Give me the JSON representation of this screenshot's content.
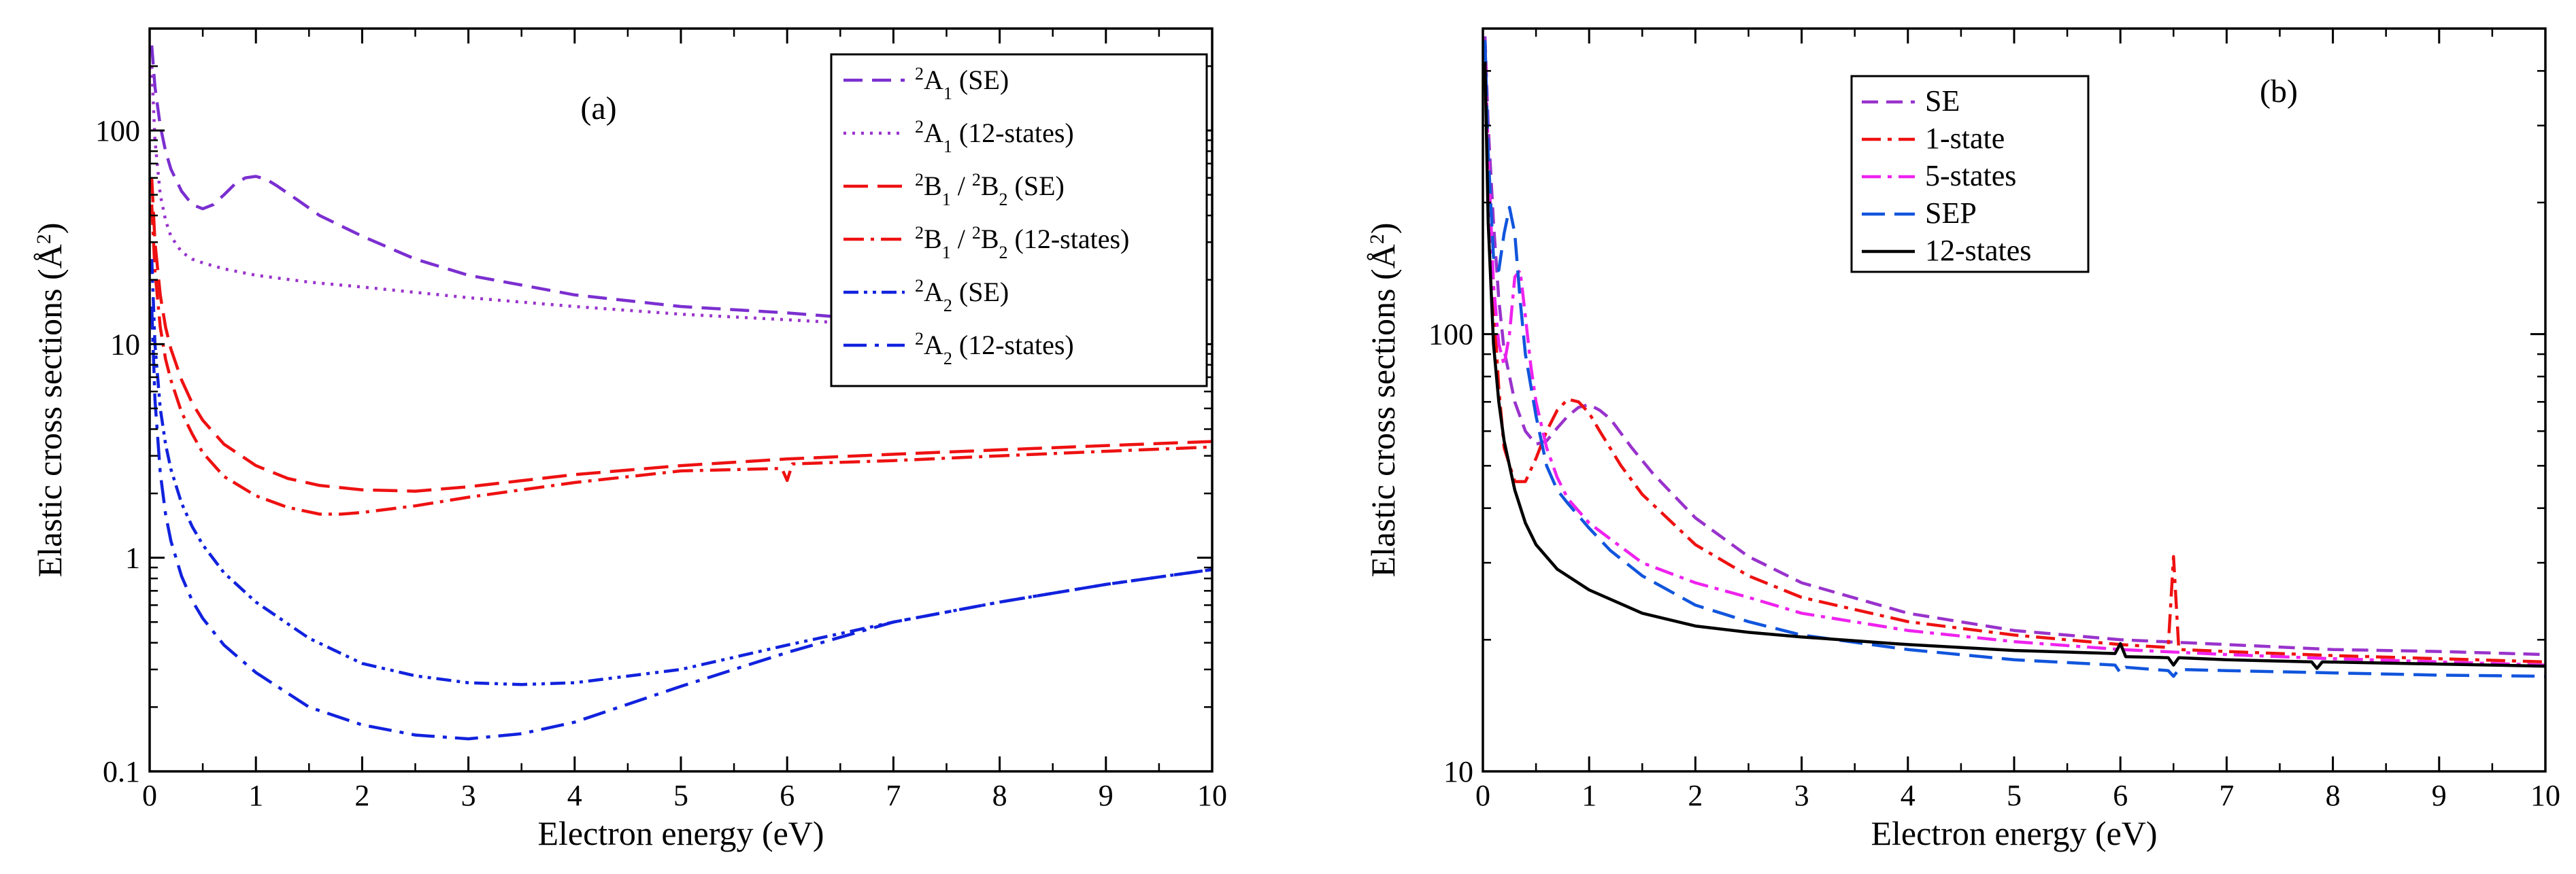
{
  "chart_data": [
    {
      "type": "line",
      "panel_label": "(a)",
      "xlabel": "Electron energy (eV)",
      "ylabel": "Elastic cross sections (Å²)",
      "ylabel_main": "Elastic cross sections (",
      "ylabel_unit": "Å",
      "ylabel_sup": "2",
      "ylabel_end": ")",
      "xlim": [
        0,
        10
      ],
      "ylim": [
        0.1,
        300
      ],
      "yscale": "log",
      "xticks": [
        0,
        1,
        2,
        3,
        4,
        5,
        6,
        7,
        8,
        9,
        10
      ],
      "xtick_labels": [
        "0",
        "1",
        "2",
        "3",
        "4",
        "5",
        "6",
        "7",
        "8",
        "9",
        "10"
      ],
      "yticks": [
        0.1,
        1,
        10,
        100
      ],
      "ytick_labels": [
        "0.1",
        "1",
        "10",
        "100"
      ],
      "legend_position": "top-right",
      "series": [
        {
          "name": "2A1 (SE)",
          "label_sup": "2",
          "label_main": "A",
          "label_sub": "1",
          "label_suffix": "  (SE)",
          "color": "#7b2fd0",
          "dash": "28,14",
          "x": [
            0.02,
            0.05,
            0.1,
            0.15,
            0.2,
            0.3,
            0.4,
            0.5,
            0.6,
            0.7,
            0.8,
            0.9,
            1.0,
            1.1,
            1.2,
            1.4,
            1.6,
            2.0,
            2.5,
            3.0,
            4.0,
            5.0,
            6.0,
            7.0,
            8.0,
            9.0,
            10.0
          ],
          "y": [
            250,
            160,
            105,
            80,
            66,
            52,
            45,
            43,
            45,
            50,
            56,
            60,
            61,
            59,
            55,
            47,
            40,
            32,
            25,
            21,
            17,
            15,
            14,
            12.8,
            12,
            11.3,
            10.5
          ]
        },
        {
          "name": "2A1 (12-states)",
          "label_sup": "2",
          "label_main": "A",
          "label_sub": "1",
          "label_suffix": " (12-states)",
          "color": "#9933cc",
          "dash": "4,9",
          "x": [
            0.02,
            0.05,
            0.1,
            0.15,
            0.2,
            0.3,
            0.4,
            0.5,
            0.7,
            1.0,
            1.5,
            2.0,
            3.0,
            4.0,
            5.0,
            6.0,
            7.0,
            8.0,
            9.0,
            10.0
          ],
          "y": [
            200,
            90,
            50,
            38,
            32,
            27,
            25,
            24,
            22.5,
            21,
            19.5,
            18.5,
            16.5,
            15,
            13.8,
            13,
            12.2,
            11.6,
            11,
            10.5
          ]
        },
        {
          "name": "2B1 / 2B2 (SE)",
          "label_sup": "2",
          "label_main": "B",
          "label_sub": "1",
          "label_mid_sup": "2",
          "label_mid_main": "B",
          "label_mid_sub": "2",
          "label_suffix": " (SE)",
          "color": "#ee1111",
          "dash": "36,14",
          "x": [
            0.02,
            0.05,
            0.1,
            0.15,
            0.2,
            0.3,
            0.4,
            0.5,
            0.7,
            1.0,
            1.3,
            1.6,
            2.0,
            2.5,
            3.0,
            4.0,
            5.0,
            6.0,
            7.0,
            8.0,
            9.0,
            10.0
          ],
          "y": [
            60,
            30,
            17,
            12,
            9.5,
            6.8,
            5.3,
            4.4,
            3.4,
            2.7,
            2.35,
            2.18,
            2.08,
            2.05,
            2.15,
            2.45,
            2.7,
            2.9,
            3.05,
            3.2,
            3.35,
            3.5
          ]
        },
        {
          "name": "2B1 / 2B2 (12-states)",
          "label_sup": "2",
          "label_main": "B",
          "label_sub": "1",
          "label_mid_sup": "2",
          "label_mid_main": "B",
          "label_mid_sub": "2",
          "label_suffix": " (12-states)",
          "color": "#ee1111",
          "dash": "30,10,5,10",
          "x": [
            0.02,
            0.05,
            0.1,
            0.15,
            0.2,
            0.3,
            0.4,
            0.5,
            0.7,
            1.0,
            1.3,
            1.6,
            1.8,
            2.0,
            2.5,
            3.0,
            4.0,
            5.0,
            5.95,
            6.0,
            6.05,
            7.0,
            8.0,
            9.0,
            10.0
          ],
          "y": [
            45,
            22,
            12,
            8.5,
            6.8,
            4.8,
            3.8,
            3.1,
            2.4,
            1.95,
            1.72,
            1.6,
            1.6,
            1.63,
            1.75,
            1.92,
            2.25,
            2.55,
            2.62,
            2.3,
            2.75,
            2.85,
            3.0,
            3.15,
            3.3
          ]
        },
        {
          "name": "2A2 (SE)",
          "label_sup": "2",
          "label_main": "A",
          "label_sub": "2",
          "label_suffix": " (SE)",
          "color": "#1122dd",
          "dash": "22,8,5,8,5,8",
          "x": [
            0.02,
            0.05,
            0.1,
            0.15,
            0.2,
            0.3,
            0.4,
            0.5,
            0.7,
            1.0,
            1.5,
            2.0,
            2.5,
            3.0,
            3.5,
            4.0,
            5.0,
            6.0,
            7.0,
            8.0,
            9.0,
            10.0
          ],
          "y": [
            25,
            10,
            5,
            3.4,
            2.6,
            1.8,
            1.4,
            1.15,
            0.85,
            0.62,
            0.42,
            0.32,
            0.28,
            0.26,
            0.255,
            0.26,
            0.3,
            0.39,
            0.5,
            0.62,
            0.75,
            0.88
          ]
        },
        {
          "name": "2A2 (12-states)",
          "label_sup": "2",
          "label_main": "A",
          "label_sub": "2",
          "label_suffix": " (12-states)",
          "color": "#1122dd",
          "dash": "34,12,6,12",
          "x": [
            0.02,
            0.05,
            0.1,
            0.15,
            0.2,
            0.3,
            0.4,
            0.5,
            0.7,
            1.0,
            1.5,
            2.0,
            2.5,
            3.0,
            3.5,
            4.0,
            5.0,
            6.0,
            7.0,
            8.0,
            9.0,
            10.0
          ],
          "y": [
            15,
            5.5,
            2.5,
            1.6,
            1.2,
            0.82,
            0.63,
            0.52,
            0.39,
            0.29,
            0.2,
            0.165,
            0.148,
            0.142,
            0.15,
            0.17,
            0.25,
            0.36,
            0.5,
            0.62,
            0.75,
            0.88
          ]
        }
      ]
    },
    {
      "type": "line",
      "panel_label": "(b)",
      "xlabel": "Electron energy (eV)",
      "ylabel": "Elastic cross sections (Å²)",
      "ylabel_main": "Elastic cross sections (",
      "ylabel_unit": "Å",
      "ylabel_sup": "2",
      "ylabel_end": ")",
      "xlim": [
        0,
        10
      ],
      "ylim": [
        10,
        500
      ],
      "yscale": "log",
      "xticks": [
        0,
        1,
        2,
        3,
        4,
        5,
        6,
        7,
        8,
        9,
        10
      ],
      "xtick_labels": [
        "0",
        "1",
        "2",
        "3",
        "4",
        "5",
        "6",
        "7",
        "8",
        "9",
        "10"
      ],
      "yticks": [
        10,
        100
      ],
      "ytick_labels": [
        "10",
        "100"
      ],
      "legend_position": "top-right",
      "series": [
        {
          "name": "SE",
          "color": "#9933cc",
          "dash": "24,12",
          "x": [
            0.02,
            0.05,
            0.1,
            0.15,
            0.2,
            0.3,
            0.4,
            0.5,
            0.6,
            0.7,
            0.8,
            0.9,
            1.0,
            1.1,
            1.2,
            1.4,
            1.6,
            2.0,
            2.5,
            3.0,
            4.0,
            5.0,
            6.0,
            7.0,
            8.0,
            9.0,
            10.0
          ],
          "y": [
            480,
            300,
            180,
            120,
            92,
            70,
            60,
            56,
            57,
            61,
            65,
            68,
            69,
            67,
            64,
            55,
            48,
            38,
            31,
            27,
            23,
            21,
            20,
            19.5,
            19,
            18.8,
            18.5
          ]
        },
        {
          "name": "1-state",
          "color": "#ee1111",
          "dash": "28,10,6,10",
          "x": [
            0.02,
            0.05,
            0.1,
            0.15,
            0.2,
            0.3,
            0.4,
            0.5,
            0.6,
            0.7,
            0.8,
            0.9,
            1.0,
            1.1,
            1.3,
            1.5,
            2.0,
            2.5,
            3.0,
            4.0,
            5.0,
            6.0,
            6.45,
            6.5,
            6.55,
            7.0,
            8.0,
            9.0,
            10.0
          ],
          "y": [
            470,
            250,
            120,
            75,
            55,
            46,
            46,
            52,
            60,
            67,
            71,
            70,
            66,
            60,
            50,
            43,
            33,
            28,
            25,
            22,
            20.5,
            19.5,
            19.2,
            31,
            19,
            18.8,
            18.4,
            18.1,
            17.8
          ]
        },
        {
          "name": "5-states",
          "color": "#ee22ee",
          "dash": "28,10,6,10",
          "x": [
            0.02,
            0.05,
            0.1,
            0.15,
            0.2,
            0.25,
            0.3,
            0.35,
            0.4,
            0.45,
            0.5,
            0.6,
            0.7,
            0.8,
            1.0,
            1.2,
            1.5,
            2.0,
            2.5,
            3.0,
            4.0,
            5.0,
            6.0,
            7.0,
            8.0,
            9.0,
            10.0
          ],
          "y": [
            470,
            260,
            130,
            95,
            85,
            100,
            135,
            140,
            110,
            85,
            70,
            55,
            47,
            42,
            37,
            34,
            30,
            27,
            25,
            23,
            21,
            19.8,
            19,
            18.5,
            18.1,
            17.8,
            17.5
          ]
        },
        {
          "name": "SEP",
          "color": "#1155dd",
          "dash": "34,14",
          "x": [
            0.02,
            0.05,
            0.1,
            0.15,
            0.2,
            0.25,
            0.3,
            0.35,
            0.4,
            0.5,
            0.6,
            0.7,
            0.8,
            1.0,
            1.2,
            1.5,
            2.0,
            2.5,
            3.0,
            4.0,
            5.0,
            5.95,
            6.0,
            6.05,
            6.45,
            6.5,
            6.55,
            7.0,
            8.0,
            9.0,
            10.0
          ],
          "y": [
            470,
            260,
            150,
            140,
            170,
            195,
            170,
            120,
            90,
            65,
            50,
            44,
            41,
            36,
            32,
            28,
            24,
            22,
            20.5,
            19,
            18,
            17.5,
            16.8,
            17.3,
            17,
            16.5,
            17.1,
            17,
            16.8,
            16.6,
            16.5
          ]
        },
        {
          "name": "12-states",
          "color": "#000000",
          "dash": "",
          "x": [
            0.02,
            0.05,
            0.1,
            0.15,
            0.2,
            0.3,
            0.4,
            0.5,
            0.7,
            1.0,
            1.5,
            2.0,
            2.5,
            3.0,
            4.0,
            5.0,
            5.95,
            6.0,
            6.05,
            6.45,
            6.5,
            6.55,
            7.0,
            7.8,
            7.85,
            7.9,
            9.0,
            10.0
          ],
          "y": [
            420,
            180,
            95,
            70,
            57,
            44,
            37,
            33,
            29,
            26,
            23,
            21.5,
            20.8,
            20.3,
            19.5,
            18.9,
            18.6,
            19.6,
            18.3,
            18.2,
            17.5,
            18.2,
            18,
            17.8,
            17.2,
            17.8,
            17.6,
            17.4
          ]
        }
      ]
    }
  ]
}
